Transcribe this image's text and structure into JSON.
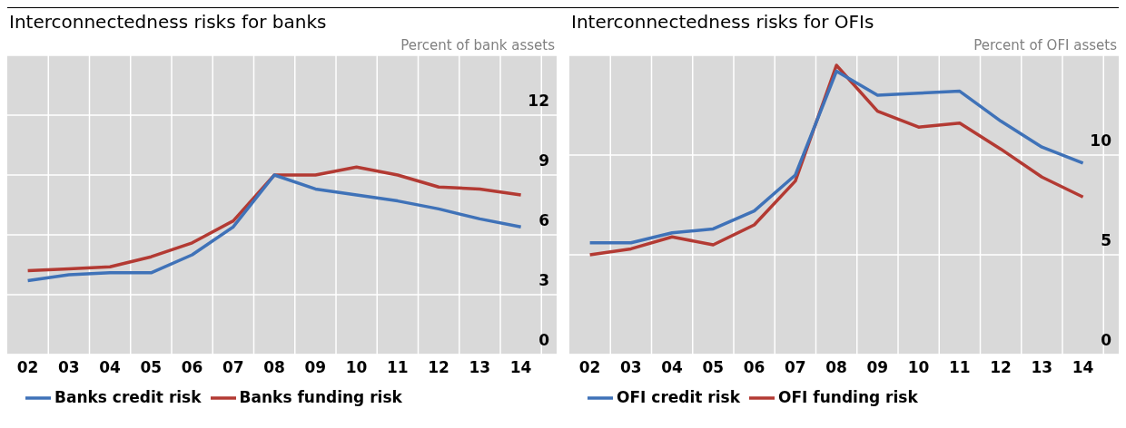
{
  "chart_data": [
    {
      "type": "line",
      "title": "Interconnectedness risks for banks",
      "ylabel": "Percent of bank assets",
      "categories": [
        "02",
        "03",
        "04",
        "05",
        "06",
        "07",
        "08",
        "09",
        "10",
        "11",
        "12",
        "13",
        "14"
      ],
      "series": [
        {
          "name": "Banks funding risk",
          "color": "#b33a33",
          "values": [
            4.2,
            4.3,
            4.4,
            4.9,
            5.6,
            6.7,
            9.0,
            9.0,
            9.4,
            9.0,
            8.4,
            8.3,
            8.0
          ]
        },
        {
          "name": "Banks credit risk",
          "color": "#3f72b8",
          "values": [
            3.7,
            4.0,
            4.1,
            4.1,
            5.0,
            6.4,
            9.0,
            8.3,
            8.0,
            7.7,
            7.3,
            6.8,
            6.4
          ]
        }
      ],
      "ylim": [
        0,
        15
      ],
      "yticks": [
        0,
        3,
        6,
        9,
        12
      ],
      "grid": true,
      "legend": "bottom",
      "marker": "none",
      "line_style": "solid"
    },
    {
      "type": "line",
      "title": "Interconnectedness risks for OFIs",
      "ylabel": "Percent of OFI assets",
      "categories": [
        "02",
        "03",
        "04",
        "05",
        "06",
        "07",
        "08",
        "09",
        "10",
        "11",
        "12",
        "13",
        "14"
      ],
      "series": [
        {
          "name": "OFI funding risk",
          "color": "#b33a33",
          "values": [
            5.0,
            5.3,
            5.9,
            5.5,
            6.5,
            8.7,
            14.5,
            12.2,
            11.4,
            11.6,
            10.3,
            8.9,
            7.9
          ]
        },
        {
          "name": "OFI credit risk",
          "color": "#3f72b8",
          "values": [
            5.6,
            5.6,
            6.1,
            6.3,
            7.2,
            9.0,
            14.2,
            13.0,
            13.1,
            13.2,
            11.7,
            10.4,
            9.6
          ]
        }
      ],
      "ylim": [
        0,
        15
      ],
      "yticks": [
        0,
        5,
        10
      ],
      "grid": true,
      "legend": "bottom",
      "marker": "none",
      "line_style": "solid"
    }
  ]
}
